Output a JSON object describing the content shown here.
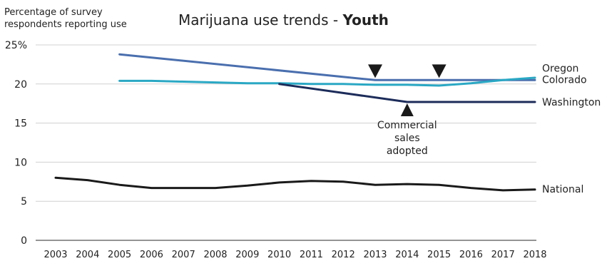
{
  "chart_data": {
    "type": "line",
    "title": "Marijuana use trends - ",
    "title_bold": "Youth",
    "ylabel": "Percentage of survey respondents reporting use",
    "ylabel_lines": [
      "Percentage of survey",
      "respondents reporting use"
    ],
    "ylim": [
      0,
      25
    ],
    "yticks": [
      "0",
      "5",
      "10",
      "15",
      "20",
      "25%"
    ],
    "x": [
      2003,
      2004,
      2005,
      2006,
      2007,
      2008,
      2009,
      2010,
      2011,
      2012,
      2013,
      2014,
      2015,
      2016,
      2017,
      2018
    ],
    "xticks": [
      "2003",
      "2004",
      "2005",
      "2006",
      "2007",
      "2008",
      "2009",
      "2010",
      "2011",
      "2012",
      "2013",
      "2014",
      "2015",
      "2016",
      "2017",
      "2018"
    ],
    "grid": "horizontal",
    "series": [
      {
        "name": "Oregon",
        "color": "#4a6fae",
        "points": [
          [
            2005,
            23.8
          ],
          [
            2013,
            20.5
          ],
          [
            2015,
            20.5
          ],
          [
            2018,
            20.5
          ]
        ]
      },
      {
        "name": "Colorado",
        "color": "#2aa8c4",
        "points": [
          [
            2005,
            20.4
          ],
          [
            2006,
            20.4
          ],
          [
            2007,
            20.3
          ],
          [
            2008,
            20.2
          ],
          [
            2009,
            20.1
          ],
          [
            2010,
            20.1
          ],
          [
            2011,
            20.0
          ],
          [
            2012,
            20.0
          ],
          [
            2013,
            19.9
          ],
          [
            2014,
            19.9
          ],
          [
            2015,
            19.8
          ],
          [
            2016,
            20.1
          ],
          [
            2017,
            20.5
          ],
          [
            2018,
            20.8
          ]
        ]
      },
      {
        "name": "Washington",
        "color": "#1c2c5a",
        "points": [
          [
            2010,
            20.0
          ],
          [
            2014,
            17.7
          ],
          [
            2018,
            17.7
          ]
        ]
      },
      {
        "name": "National",
        "color": "#1a1a1a",
        "points": [
          [
            2003,
            8.0
          ],
          [
            2004,
            7.7
          ],
          [
            2005,
            7.1
          ],
          [
            2006,
            6.7
          ],
          [
            2007,
            6.7
          ],
          [
            2008,
            6.7
          ],
          [
            2009,
            7.0
          ],
          [
            2010,
            7.4
          ],
          [
            2011,
            7.6
          ],
          [
            2012,
            7.5
          ],
          [
            2013,
            7.1
          ],
          [
            2014,
            7.2
          ],
          [
            2015,
            7.1
          ],
          [
            2016,
            6.7
          ],
          [
            2017,
            6.4
          ],
          [
            2018,
            6.5
          ]
        ]
      }
    ],
    "markers": [
      {
        "x": 2013,
        "y": 20.5,
        "direction": "down"
      },
      {
        "x": 2015,
        "y": 20.5,
        "direction": "down"
      },
      {
        "x": 2014,
        "y": 17.7,
        "direction": "up"
      }
    ],
    "annotation": {
      "lines": [
        "Commercial",
        "sales",
        "adopted"
      ],
      "x": 2014
    }
  }
}
